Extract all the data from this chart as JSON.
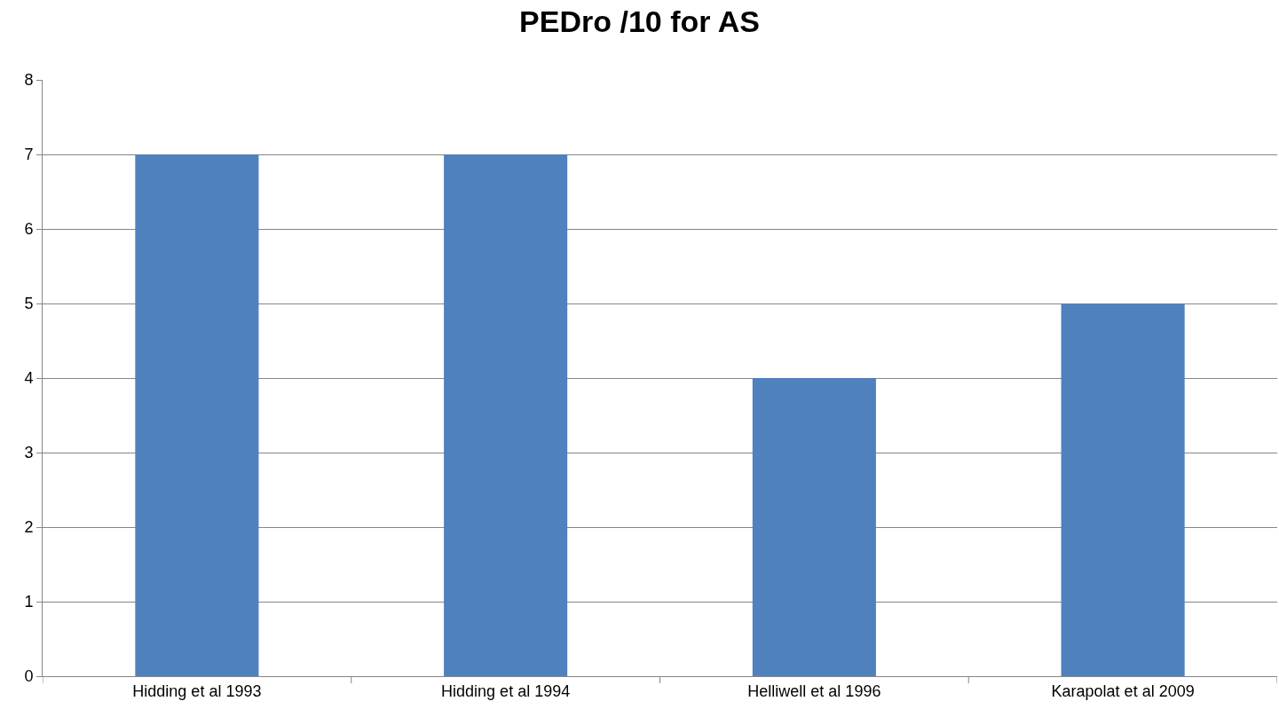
{
  "chart_data": {
    "type": "bar",
    "title": "PEDro /10 for AS",
    "categories": [
      "Hidding et al 1993",
      "Hidding et al 1994",
      "Helliwell et al 1996",
      "Karapolat et al 2009"
    ],
    "values": [
      7,
      7,
      4,
      5
    ],
    "color": "#4f81bd",
    "ylim": [
      0,
      8
    ],
    "yticks": [
      0,
      1,
      2,
      3,
      4,
      5,
      6,
      7,
      8
    ],
    "grid": "y"
  }
}
